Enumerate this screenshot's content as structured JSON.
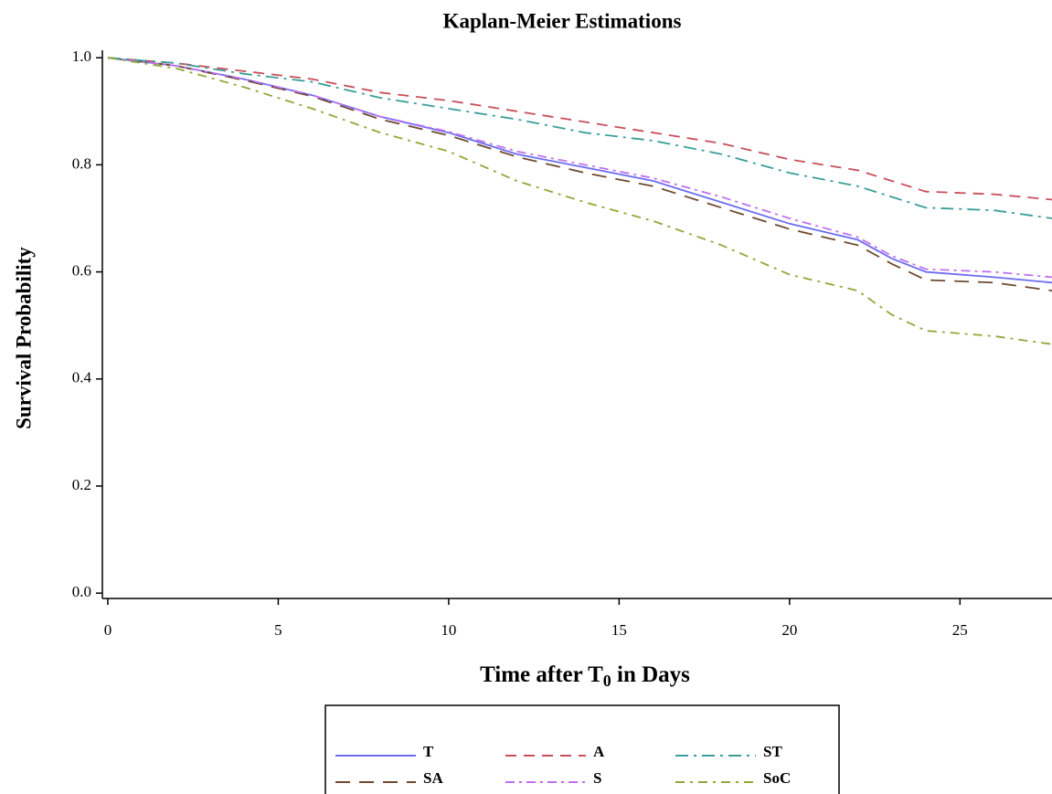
{
  "chart_data": {
    "type": "line",
    "title": "Kaplan-Meier Estimations",
    "y_label": "Survival Probability",
    "x_label": [
      "Time after T",
      "0",
      " in Days"
    ],
    "x": [
      0,
      2,
      4,
      6,
      8,
      10,
      12,
      14,
      16,
      18,
      20,
      22,
      23,
      24,
      26,
      27.7
    ],
    "xlim": [
      -0.16,
      27.7
    ],
    "xticks": [
      0,
      5,
      10,
      15,
      20,
      25
    ],
    "ylim": [
      -0.01,
      1.014
    ],
    "yticks": [
      {
        "value": 0,
        "label": "0.0"
      },
      0.2,
      0.4,
      0.6,
      0.8,
      {
        "value": 1,
        "label": "1.0"
      }
    ],
    "series": [
      {
        "name": "T",
        "color": "#6c6cf0",
        "dash": "none",
        "values": [
          1,
          0.985,
          0.96,
          0.93,
          0.89,
          0.86,
          0.82,
          0.795,
          0.77,
          0.73,
          0.69,
          0.66,
          0.625,
          0.6,
          0.59,
          0.58
        ]
      },
      {
        "name": "SA",
        "color": "#6e4a30",
        "dash": "16,10",
        "values": [
          1,
          0.985,
          0.958,
          0.928,
          0.885,
          0.855,
          0.815,
          0.785,
          0.76,
          0.72,
          0.68,
          0.65,
          0.615,
          0.585,
          0.58,
          0.565
        ]
      },
      {
        "name": "A",
        "color": "#c84e5b",
        "dash": "12,8",
        "values": [
          1,
          0.99,
          0.975,
          0.96,
          0.935,
          0.92,
          0.9,
          0.88,
          0.86,
          0.84,
          0.81,
          0.79,
          0.77,
          0.75,
          0.745,
          0.735
        ]
      },
      {
        "name": "S",
        "color": "#c070f0",
        "dash": "10,5,3,5",
        "values": [
          1,
          0.985,
          0.96,
          0.93,
          0.89,
          0.862,
          0.825,
          0.8,
          0.775,
          0.74,
          0.7,
          0.665,
          0.63,
          0.605,
          0.6,
          0.59
        ]
      },
      {
        "name": "ST",
        "color": "#3a9e9a",
        "dash": "14,6,3,6",
        "values": [
          1,
          0.99,
          0.97,
          0.955,
          0.925,
          0.905,
          0.885,
          0.86,
          0.845,
          0.82,
          0.785,
          0.76,
          0.74,
          0.72,
          0.715,
          0.7
        ]
      },
      {
        "name": "SoC",
        "color": "#8fa83a",
        "dash": "10,6,3,6",
        "values": [
          1,
          0.98,
          0.945,
          0.905,
          0.86,
          0.825,
          0.77,
          0.73,
          0.695,
          0.65,
          0.595,
          0.565,
          0.52,
          0.49,
          0.48,
          0.465
        ]
      }
    ]
  }
}
